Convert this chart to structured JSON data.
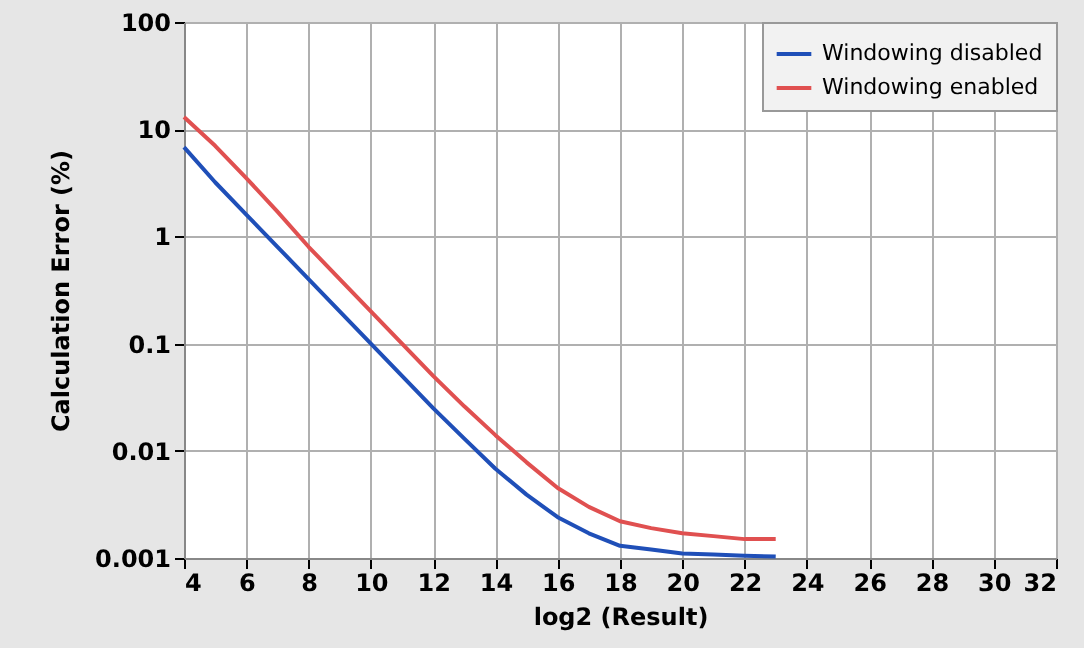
{
  "chart_data": {
    "type": "line",
    "xlabel": "log2 (Result)",
    "ylabel": "Calculation Error (%)",
    "x": [
      4,
      5,
      6,
      7,
      8,
      9,
      10,
      11,
      12,
      13,
      14,
      15,
      16,
      17,
      18,
      19,
      20,
      21,
      22,
      23
    ],
    "series": [
      {
        "name": "Windowing disabled",
        "color": "#1f4fb8",
        "values": [
          6.8,
          3.2,
          1.6,
          0.8,
          0.4,
          0.2,
          0.1,
          0.05,
          0.025,
          0.013,
          0.0068,
          0.0039,
          0.0024,
          0.0017,
          0.0013,
          0.0012,
          0.0011,
          0.00108,
          0.00105,
          0.00103
        ]
      },
      {
        "name": "Windowing enabled",
        "color": "#e05050",
        "values": [
          13,
          7,
          3.5,
          1.7,
          0.8,
          0.4,
          0.2,
          0.1,
          0.05,
          0.026,
          0.014,
          0.0078,
          0.0045,
          0.003,
          0.0022,
          0.0019,
          0.0017,
          0.0016,
          0.0015,
          0.0015
        ]
      }
    ],
    "xlim": [
      4,
      32
    ],
    "xticks": [
      4,
      6,
      8,
      10,
      12,
      14,
      16,
      18,
      20,
      22,
      24,
      26,
      28,
      30,
      32
    ],
    "ylim": [
      0.001,
      100
    ],
    "yticks": [
      0.001,
      0.01,
      0.1,
      1,
      10,
      100
    ],
    "log": "y",
    "grid": true,
    "legend": "top right",
    "line_style": "solid",
    "marker": "none"
  }
}
